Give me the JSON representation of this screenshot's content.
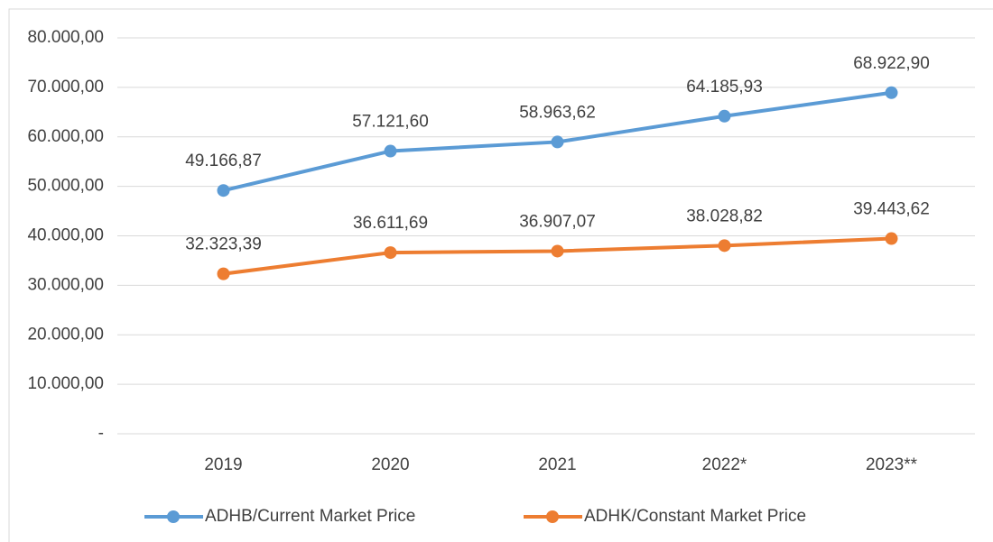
{
  "chart_data": {
    "type": "line",
    "categories": [
      "2019",
      "2020",
      "2021",
      "2022*",
      "2023**"
    ],
    "series": [
      {
        "name": "ADHB/Current Market Price",
        "color": "#5b9bd5",
        "values": [
          49166.87,
          57121.6,
          58963.62,
          64185.93,
          68922.9
        ],
        "value_labels": [
          "49.166,87",
          "57.121,60",
          "58.963,62",
          "64.185,93",
          "68.922,90"
        ]
      },
      {
        "name": "ADHK/Constant Market Price",
        "color": "#ed7d31",
        "values": [
          32323.39,
          36611.69,
          36907.07,
          38028.82,
          39443.62
        ],
        "value_labels": [
          "32.323,39",
          "36.611,69",
          "36.907,07",
          "38.028,82",
          "39.443,62"
        ]
      }
    ],
    "ylim": [
      0,
      80000
    ],
    "yticks": [
      {
        "value": 0,
        "label": "-"
      },
      {
        "value": 10000,
        "label": "10.000,00"
      },
      {
        "value": 20000,
        "label": "20.000,00"
      },
      {
        "value": 30000,
        "label": "30.000,00"
      },
      {
        "value": 40000,
        "label": "40.000,00"
      },
      {
        "value": 50000,
        "label": "50.000,00"
      },
      {
        "value": 60000,
        "label": "60.000,00"
      },
      {
        "value": 70000,
        "label": "70.000,00"
      },
      {
        "value": 80000,
        "label": "80.000,00"
      }
    ],
    "grid": true,
    "legend": "bottom"
  }
}
